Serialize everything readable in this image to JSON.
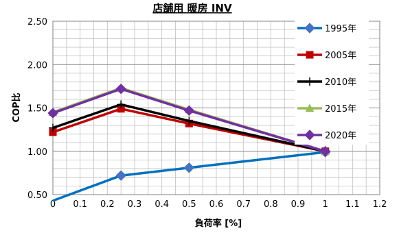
{
  "chart_data": {
    "type": "line",
    "title": "店舗用 暖房 INV",
    "xlabel": "負荷率 [%]",
    "ylabel": "COP比",
    "xlim": [
      0,
      1.2
    ],
    "ylim": [
      0.5,
      2.5
    ],
    "x_ticks": [
      "0",
      "0.1",
      "0.2",
      "0.3",
      "0.4",
      "0.5",
      "0.6",
      "0.7",
      "0.8",
      "0.9",
      "1",
      "1.1",
      "1.2"
    ],
    "y_ticks": [
      "0.50",
      "1.00",
      "1.50",
      "2.00",
      "2.50"
    ],
    "grid": true,
    "legend_position": "right",
    "series": [
      {
        "name": "1995年",
        "color": "#4472c4",
        "line_color": "#0070c0",
        "marker": "diamond",
        "x": [
          0,
          0.25,
          0.5,
          1.0
        ],
        "y": [
          0.43,
          0.72,
          0.81,
          0.99
        ]
      },
      {
        "name": "2005年",
        "color": "#c00000",
        "line_color": "#c00000",
        "marker": "square",
        "x": [
          0,
          0.25,
          0.5,
          1.0
        ],
        "y": [
          1.22,
          1.49,
          1.32,
          1.0
        ]
      },
      {
        "name": "2010年",
        "color": "#000000",
        "line_color": "#000000",
        "marker": "plus",
        "x": [
          0,
          0.25,
          0.5,
          1.0
        ],
        "y": [
          1.27,
          1.54,
          1.35,
          1.0
        ]
      },
      {
        "name": "2015年",
        "color": "#9bbb59",
        "line_color": "#9bbb59",
        "marker": "triangle",
        "x": [
          0,
          0.25,
          0.5,
          1.0
        ],
        "y": [
          1.45,
          1.73,
          1.48,
          1.0
        ]
      },
      {
        "name": "2020年",
        "color": "#7030a0",
        "line_color": "#7030a0",
        "marker": "diamond",
        "x": [
          0,
          0.25,
          0.5,
          1.0
        ],
        "y": [
          1.44,
          1.72,
          1.47,
          1.0
        ]
      }
    ]
  }
}
